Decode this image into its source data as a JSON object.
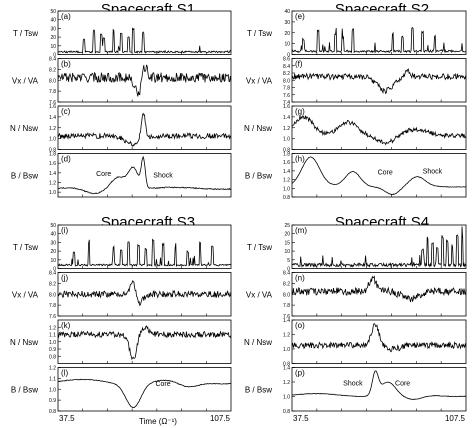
{
  "figure": {
    "xaxis_title": "Time (Ω⁻¹)",
    "x_tick_labels": [
      "37.5",
      "107.5"
    ]
  },
  "chart_data": [
    {
      "type": "line",
      "title": "Spacecraft S1",
      "xlim": [
        37.5,
        107.5
      ],
      "panels": [
        {
          "letter": "(a)",
          "ylabel": "T / Tsw",
          "ylim": [
            0,
            50
          ],
          "yticks": [
            "0",
            "10",
            "20",
            "30",
            "40",
            "50"
          ],
          "profile": "temperature",
          "spike_times": [
            48,
            52,
            55,
            56,
            60,
            63,
            66,
            68,
            72
          ],
          "base": 2,
          "spike_max": 28,
          "noise": 0.03
        },
        {
          "letter": "(b)",
          "ylabel": "Vx / VA",
          "ylim": [
            7.6,
            8.4
          ],
          "yticks": [
            "7.6",
            "7.8",
            "8.0",
            "8.2",
            "8.4"
          ],
          "profile": "velocity",
          "base": 8.05,
          "noise": 0.09,
          "events": [
            {
              "t": 70,
              "depth": -0.3,
              "width": 1.5
            },
            {
              "t": 72.5,
              "depth": 0.25,
              "width": 1
            }
          ]
        },
        {
          "letter": "(c)",
          "ylabel": "N / Nsw",
          "ylim": [
            0.8,
            1.6
          ],
          "yticks": [
            "0.8",
            "1.0",
            "1.2",
            "1.4",
            "1.6"
          ],
          "profile": "density",
          "base": 1.05,
          "noise": 0.05,
          "events": [
            {
              "t": 68,
              "depth": -0.15,
              "width": 3
            },
            {
              "t": 72,
              "depth": 0.5,
              "width": 0.8
            }
          ]
        },
        {
          "letter": "(d)",
          "ylabel": "B / Bsw",
          "ylim": [
            0.9,
            1.8
          ],
          "yticks": [
            "1.0",
            "1.2",
            "1.4",
            "1.6",
            "1.8"
          ],
          "profile": "field",
          "base": 1.08,
          "noise": 0.01,
          "events": [
            {
              "t": 52,
              "depth": -0.12,
              "width": 4
            },
            {
              "t": 62,
              "depth": 0.25,
              "width": 3
            },
            {
              "t": 68,
              "depth": 0.42,
              "width": 2
            },
            {
              "t": 72,
              "depth": 0.6,
              "width": 0.8
            }
          ],
          "annotations": [
            {
              "text": "Core",
              "t": 56,
              "y": 1.33
            },
            {
              "text": "Shock",
              "t": 80,
              "y": 1.3
            }
          ]
        }
      ]
    },
    {
      "type": "line",
      "title": "Spacecraft S2",
      "xlim": [
        37.5,
        107.5
      ],
      "panels": [
        {
          "letter": "(e)",
          "ylabel": "T / Tsw",
          "ylim": [
            0,
            40
          ],
          "yticks": [
            "0",
            "10",
            "20",
            "30",
            "40"
          ],
          "profile": "temperature",
          "spike_times": [
            42,
            48,
            55,
            58,
            62,
            78,
            82,
            86,
            90,
            95
          ],
          "base": 2,
          "spike_max": 22,
          "noise": 0.04
        },
        {
          "letter": "(f)",
          "ylabel": "Vx / VA",
          "ylim": [
            7.4,
            8.6
          ],
          "yticks": [
            "7.4",
            "7.6",
            "7.8",
            "8.0",
            "8.2",
            "8.4",
            "8.6"
          ],
          "profile": "velocity",
          "base": 8.1,
          "noise": 0.08,
          "events": [
            {
              "t": 75,
              "depth": -0.4,
              "width": 3
            },
            {
              "t": 84,
              "depth": 0.2,
              "width": 1
            }
          ]
        },
        {
          "letter": "(g)",
          "ylabel": "N / Nsw",
          "ylim": [
            0.8,
            1.6
          ],
          "yticks": [
            "0.8",
            "1.0",
            "1.2",
            "1.4",
            "1.6"
          ],
          "profile": "density",
          "base": 1.05,
          "noise": 0.04,
          "events": [
            {
              "t": 42,
              "depth": 0.35,
              "width": 4
            },
            {
              "t": 60,
              "depth": 0.25,
              "width": 4
            },
            {
              "t": 76,
              "depth": -0.15,
              "width": 4
            },
            {
              "t": 86,
              "depth": 0.12,
              "width": 6
            }
          ]
        },
        {
          "letter": "(h)",
          "ylabel": "B / Bsw",
          "ylim": [
            0.8,
            1.8
          ],
          "yticks": [
            "0.8",
            "1.0",
            "1.2",
            "1.4",
            "1.6",
            "1.8"
          ],
          "profile": "field",
          "base": 1.05,
          "noise": 0.005,
          "events": [
            {
              "t": 45,
              "depth": 0.65,
              "width": 3.5
            },
            {
              "t": 62,
              "depth": 0.35,
              "width": 3
            },
            {
              "t": 78,
              "depth": -0.2,
              "width": 3
            },
            {
              "t": 88,
              "depth": 0.2,
              "width": 3
            }
          ],
          "annotations": [
            {
              "text": "Core",
              "t": 75,
              "y": 1.32
            },
            {
              "text": "Shock",
              "t": 94,
              "y": 1.34
            }
          ]
        }
      ]
    },
    {
      "type": "line",
      "title": "Spacecraft S3",
      "xlim": [
        37.5,
        107.5
      ],
      "panels": [
        {
          "letter": "(i)",
          "ylabel": "T / Tsw",
          "ylim": [
            0,
            50
          ],
          "yticks": [
            "0",
            "10",
            "20",
            "30",
            "40",
            "50"
          ],
          "profile": "temperature",
          "spike_times": [
            44,
            50,
            60,
            63,
            66,
            70,
            73,
            76,
            80,
            85,
            90,
            95,
            100
          ],
          "base": 3,
          "spike_max": 30,
          "noise": 0.05
        },
        {
          "letter": "(j)",
          "ylabel": "Vx / VA",
          "ylim": [
            7.6,
            8.4
          ],
          "yticks": [
            "7.6",
            "7.8",
            "8.0",
            "8.2",
            "8.4"
          ],
          "profile": "velocity",
          "base": 8.0,
          "noise": 0.06,
          "events": [
            {
              "t": 68,
              "depth": 0.3,
              "width": 1
            },
            {
              "t": 70,
              "depth": -0.2,
              "width": 1.5
            }
          ]
        },
        {
          "letter": "(k)",
          "ylabel": "N / Nsw",
          "ylim": [
            0.7,
            1.3
          ],
          "yticks": [
            "0.8",
            "0.9",
            "1.0",
            "1.1",
            "1.2"
          ],
          "profile": "density",
          "base": 1.1,
          "noise": 0.04,
          "events": [
            {
              "t": 68,
              "depth": -0.35,
              "width": 1.5
            },
            {
              "t": 72,
              "depth": 0.1,
              "width": 2
            }
          ]
        },
        {
          "letter": "(l)",
          "ylabel": "B / Bsw",
          "ylim": [
            0.8,
            1.2
          ],
          "yticks": [
            "0.8",
            "0.9",
            "1.0",
            "1.1",
            "1.2"
          ],
          "profile": "field",
          "base": 1.07,
          "noise": 0.003,
          "events": [
            {
              "t": 68,
              "depth": -0.22,
              "width": 3
            },
            {
              "t": 90,
              "depth": -0.06,
              "width": 4
            }
          ],
          "annotations": [
            {
              "text": "Core",
              "t": 80,
              "y": 1.03
            }
          ]
        }
      ]
    },
    {
      "type": "line",
      "title": "Spacecraft S4",
      "xlim": [
        37.5,
        107.5
      ],
      "panels": [
        {
          "letter": "(m)",
          "ylabel": "T / Tsw",
          "ylim": [
            0,
            25
          ],
          "yticks": [
            "0",
            "5",
            "10",
            "15",
            "20",
            "25"
          ],
          "profile": "temperature",
          "spike_times": [
            90,
            92,
            94,
            96,
            98,
            100,
            102,
            104,
            106
          ],
          "base": 1,
          "spike_max": 18,
          "noise": 0.03
        },
        {
          "letter": "(n)",
          "ylabel": "Vx / VA",
          "ylim": [
            7.6,
            8.4
          ],
          "yticks": [
            "7.6",
            "7.8",
            "8.0",
            "8.2",
            "8.4"
          ],
          "profile": "velocity",
          "base": 8.05,
          "noise": 0.07,
          "events": [
            {
              "t": 70,
              "depth": 0.25,
              "width": 1.5
            },
            {
              "t": 85,
              "depth": -0.15,
              "width": 3
            }
          ]
        },
        {
          "letter": "(o)",
          "ylabel": "N / Nsw",
          "ylim": [
            0.8,
            1.4
          ],
          "yticks": [
            "0.8",
            "1.0",
            "1.2",
            "1.4"
          ],
          "profile": "density",
          "base": 1.05,
          "noise": 0.04,
          "events": [
            {
              "t": 71,
              "depth": 0.3,
              "width": 1.5
            },
            {
              "t": 78,
              "depth": -0.05,
              "width": 3
            }
          ]
        },
        {
          "letter": "(p)",
          "ylabel": "B / Bsw",
          "ylim": [
            0.8,
            1.4
          ],
          "yticks": [
            "0.8",
            "1.0",
            "1.2",
            "1.4"
          ],
          "profile": "field",
          "base": 1.02,
          "noise": 0.003,
          "events": [
            {
              "t": 71,
              "depth": 0.3,
              "width": 1.2
            },
            {
              "t": 76,
              "depth": 0.18,
              "width": 3
            },
            {
              "t": 86,
              "depth": -0.08,
              "width": 4
            }
          ],
          "annotations": [
            {
              "text": "Shock",
              "t": 62,
              "y": 1.15
            },
            {
              "text": "Core",
              "t": 82,
              "y": 1.15
            }
          ]
        }
      ]
    }
  ]
}
